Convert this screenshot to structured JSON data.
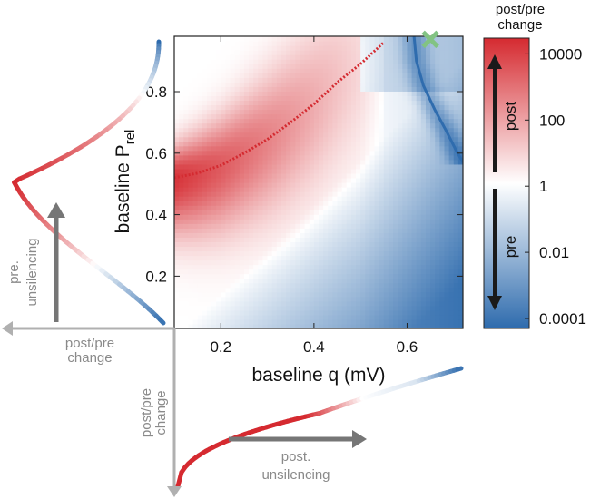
{
  "chart_data": {
    "type": "heatmap",
    "xlabel": "baseline q (mV)",
    "ylabel_main": "baseline P",
    "ylabel_sub": "rel",
    "xlim": [
      0.1,
      0.72
    ],
    "ylim": [
      0.03,
      0.98
    ],
    "x_ticks": [
      {
        "value": 0.2,
        "label": "0.2"
      },
      {
        "value": 0.4,
        "label": "0.4"
      },
      {
        "value": 0.6,
        "label": "0.6"
      }
    ],
    "y_ticks": [
      {
        "value": 0.2,
        "label": "0.2"
      },
      {
        "value": 0.4,
        "label": "0.4"
      },
      {
        "value": 0.6,
        "label": "0.6"
      },
      {
        "value": 0.8,
        "label": "0.8"
      }
    ],
    "colorbar": {
      "title_line1": "post/pre",
      "title_line2": "change",
      "scale": "log",
      "range": [
        5e-05,
        30000
      ],
      "ticks": [
        {
          "value": 10000,
          "label": "10000"
        },
        {
          "value": 100,
          "label": "100"
        },
        {
          "value": 1,
          "label": "1"
        },
        {
          "value": 0.01,
          "label": "0.01"
        },
        {
          "value": 0.0001,
          "label": "0.0001"
        }
      ],
      "colors": {
        "high": "#d7282f",
        "mid": "#ffffff",
        "low": "#2f6db0"
      },
      "arrow_up_label": "post",
      "arrow_down_label": "pre"
    },
    "ridge_curve": [
      [
        0.1,
        0.52
      ],
      [
        0.15,
        0.535
      ],
      [
        0.2,
        0.56
      ],
      [
        0.25,
        0.6
      ],
      [
        0.3,
        0.645
      ],
      [
        0.35,
        0.7
      ],
      [
        0.4,
        0.76
      ],
      [
        0.45,
        0.83
      ],
      [
        0.5,
        0.89
      ],
      [
        0.55,
        0.96
      ]
    ],
    "trough_curve": [
      [
        0.615,
        0.98
      ],
      [
        0.62,
        0.9
      ],
      [
        0.635,
        0.82
      ],
      [
        0.66,
        0.74
      ],
      [
        0.685,
        0.67
      ],
      [
        0.705,
        0.61
      ],
      [
        0.72,
        0.57
      ]
    ],
    "marker": {
      "x": 0.65,
      "y": 0.97,
      "symbol": "x",
      "color": "#82c383"
    },
    "side_profiles": {
      "left_label_line1": "pre.",
      "left_label_line2": "unsilencing",
      "left_axis_line1": "post/pre",
      "left_axis_line2": "change",
      "bottom_axis_line1": "post/pre",
      "bottom_axis_line2": "change",
      "bottom_label_line1": "post.",
      "bottom_label_line2": "unsilencing"
    }
  }
}
